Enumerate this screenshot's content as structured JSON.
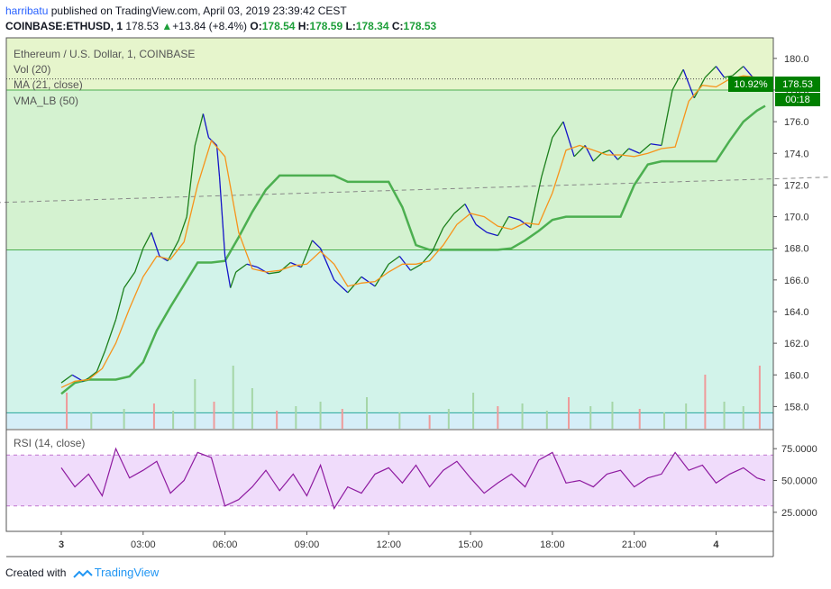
{
  "header": {
    "author": "harribatu",
    "published_text": "published on TradingView.com, April 03, 2019 23:39:42 CEST",
    "symbol": "COINBASE:ETHUSD, 1",
    "last": "178.53",
    "change": "+13.84 (+8.4%)",
    "o_label": "O:",
    "o": "178.54",
    "h_label": "H:",
    "h": "178.59",
    "l_label": "L:",
    "l": "178.34",
    "c_label": "C:",
    "c": "178.53"
  },
  "legend": {
    "title": "Ethereum / U.S. Dollar, 1, COINBASE",
    "vol": "Vol (20)",
    "ma": "MA (21, close)",
    "vma": "VMA_LB (50)",
    "rsi": "RSI (14, close)"
  },
  "price_badge": {
    "percent": "10.92%",
    "price": "178.53",
    "countdown": "00:18"
  },
  "footer": {
    "created_with": "Created with",
    "brand": "TradingView"
  },
  "colors": {
    "up_text": "#1e9f3a",
    "zone_upper": "#e6f5cc",
    "zone_middle": "#d4f2d0",
    "zone_lower": "#d2f3ea",
    "volume_zone": "#d5eef8",
    "rsi_band": "#f0dcfb",
    "rsi_line": "#8e1aa0",
    "ma_line": "#f7931a",
    "vma_line": "#4caf50",
    "price_up": "#1b7f1b",
    "price_down": "#1515c8",
    "price_red": "#e01010",
    "trend_line": "#888888",
    "badge_green": "#008000"
  },
  "chart_data": [
    {
      "type": "line",
      "title": "Ethereum / U.S. Dollar, 1, COINBASE",
      "x_ticks": [
        "3",
        "03:00",
        "06:00",
        "09:00",
        "12:00",
        "15:00",
        "18:00",
        "21:00",
        "4"
      ],
      "y_ticks": [
        158,
        160,
        162,
        164,
        166,
        168,
        170,
        172,
        174,
        176,
        178,
        180
      ],
      "ylim": [
        156.6,
        181.3
      ],
      "last_price": 178.53,
      "horizontal_levels": [
        178.0,
        167.9,
        157.6
      ],
      "trend_line": {
        "start": [
          0,
          170.7
        ],
        "end": [
          28.2,
          172.5
        ]
      },
      "series": [
        {
          "name": "price",
          "x": [
            0.0,
            0.4,
            0.8,
            1.0,
            1.3,
            1.6,
            2.0,
            2.3,
            2.7,
            3.0,
            3.3,
            3.6,
            3.9,
            4.3,
            4.6,
            4.9,
            5.2,
            5.4,
            5.7,
            5.8,
            6.0,
            6.2,
            6.4,
            6.8,
            7.2,
            7.6,
            8.0,
            8.4,
            8.8,
            9.2,
            9.5,
            10.0,
            10.5,
            11.0,
            11.5,
            12.0,
            12.4,
            12.8,
            13.2,
            13.6,
            14.0,
            14.4,
            14.8,
            15.2,
            15.6,
            16.0,
            16.4,
            16.8,
            17.2,
            17.6,
            18.0,
            18.4,
            18.8,
            19.2,
            19.5,
            19.8,
            20.1,
            20.4,
            20.8,
            21.2,
            21.6,
            22.0,
            22.4,
            22.8,
            23.2,
            23.6,
            24.0,
            24.3,
            24.6,
            25.0,
            25.4,
            25.8
          ],
          "values": [
            159.5,
            160.0,
            159.6,
            159.8,
            160.2,
            161.5,
            163.5,
            165.5,
            166.5,
            168.0,
            169.0,
            167.5,
            167.2,
            168.5,
            170.0,
            174.5,
            176.5,
            175.0,
            174.5,
            172.5,
            167.5,
            165.5,
            166.5,
            167.0,
            166.8,
            166.4,
            166.5,
            167.1,
            166.8,
            168.5,
            168.0,
            166.0,
            165.2,
            166.2,
            165.6,
            167.0,
            167.5,
            166.6,
            167.0,
            167.8,
            169.3,
            170.2,
            170.8,
            169.5,
            169.0,
            168.8,
            170.0,
            169.8,
            169.3,
            172.5,
            175.0,
            176.0,
            173.8,
            174.5,
            173.5,
            174.0,
            174.2,
            173.6,
            174.3,
            174.0,
            174.6,
            174.5,
            178.0,
            179.3,
            177.5,
            178.8,
            179.5,
            178.8,
            178.9,
            179.5,
            178.7,
            178.53
          ]
        },
        {
          "name": "MA (21, close)",
          "x": [
            0.0,
            0.5,
            1.0,
            1.5,
            2.0,
            2.5,
            3.0,
            3.5,
            4.0,
            4.5,
            5.0,
            5.5,
            6.0,
            6.5,
            7.0,
            7.5,
            8.0,
            8.5,
            9.0,
            9.5,
            10.0,
            10.5,
            11.0,
            11.5,
            12.0,
            12.5,
            13.0,
            13.5,
            14.0,
            14.5,
            15.0,
            15.5,
            16.0,
            16.5,
            17.0,
            17.5,
            18.0,
            18.5,
            19.0,
            19.5,
            20.0,
            20.5,
            21.0,
            21.5,
            22.0,
            22.5,
            23.0,
            23.5,
            24.0,
            24.5,
            25.0,
            25.5,
            25.8
          ],
          "values": [
            159.2,
            159.6,
            159.7,
            160.4,
            162.0,
            164.2,
            166.2,
            167.5,
            167.3,
            168.4,
            172.0,
            174.8,
            173.8,
            169.0,
            166.7,
            166.5,
            166.6,
            166.9,
            167.0,
            167.8,
            167.0,
            165.6,
            165.8,
            165.9,
            166.5,
            167.0,
            167.0,
            167.2,
            168.2,
            169.5,
            170.2,
            170.0,
            169.4,
            169.2,
            169.6,
            169.5,
            171.5,
            174.2,
            174.5,
            174.2,
            173.9,
            173.9,
            173.8,
            174.0,
            174.3,
            174.4,
            177.3,
            178.3,
            178.2,
            178.7,
            178.9,
            178.8,
            178.7
          ]
        },
        {
          "name": "VMA_LB (50)",
          "x": [
            0.0,
            0.5,
            1.0,
            1.5,
            2.0,
            2.5,
            3.0,
            3.5,
            4.0,
            4.5,
            5.0,
            5.5,
            6.0,
            6.5,
            7.0,
            7.5,
            8.0,
            8.5,
            9.0,
            9.5,
            10.0,
            10.5,
            11.0,
            11.5,
            12.0,
            12.5,
            13.0,
            13.5,
            14.0,
            14.5,
            15.0,
            15.5,
            16.0,
            16.5,
            17.0,
            17.5,
            18.0,
            18.5,
            19.0,
            19.5,
            20.0,
            20.5,
            21.0,
            21.5,
            22.0,
            22.5,
            23.0,
            23.5,
            24.0,
            24.5,
            25.0,
            25.5,
            25.8
          ],
          "values": [
            158.8,
            159.5,
            159.7,
            159.7,
            159.7,
            159.9,
            160.8,
            162.8,
            164.3,
            165.7,
            167.1,
            167.1,
            167.2,
            168.7,
            170.3,
            171.7,
            172.6,
            172.6,
            172.6,
            172.6,
            172.6,
            172.2,
            172.2,
            172.2,
            172.2,
            170.6,
            168.2,
            167.9,
            167.9,
            167.9,
            167.9,
            167.9,
            167.9,
            168.0,
            168.5,
            169.1,
            169.8,
            170.0,
            170.0,
            170.0,
            170.0,
            170.0,
            172.0,
            173.3,
            173.5,
            173.5,
            173.5,
            173.5,
            173.5,
            174.8,
            176.0,
            176.7,
            177.0
          ]
        }
      ]
    },
    {
      "type": "bar",
      "title": "Vol (20)",
      "x": [
        0.2,
        1.1,
        2.3,
        3.4,
        4.1,
        4.9,
        5.6,
        6.3,
        7.0,
        7.9,
        8.6,
        9.5,
        10.3,
        11.2,
        12.4,
        13.5,
        14.2,
        15.1,
        16.0,
        16.9,
        17.8,
        18.6,
        19.4,
        20.2,
        21.2,
        22.1,
        22.9,
        23.6,
        24.3,
        25.0,
        25.6
      ],
      "values": [
        40,
        18,
        22,
        28,
        20,
        55,
        30,
        70,
        45,
        20,
        25,
        30,
        22,
        35,
        18,
        15,
        22,
        40,
        25,
        28,
        20,
        35,
        25,
        30,
        22,
        18,
        28,
        60,
        30,
        25,
        70
      ]
    },
    {
      "type": "line",
      "title": "RSI (14, close)",
      "y_ticks": [
        "25.0000",
        "50.0000",
        "75.0000"
      ],
      "ylim": [
        10,
        90
      ],
      "levels": [
        30,
        70
      ],
      "series": [
        {
          "name": "RSI",
          "x": [
            0.0,
            0.5,
            1.0,
            1.5,
            2.0,
            2.5,
            3.0,
            3.5,
            4.0,
            4.5,
            5.0,
            5.5,
            6.0,
            6.5,
            7.0,
            7.5,
            8.0,
            8.5,
            9.0,
            9.5,
            10.0,
            10.5,
            11.0,
            11.5,
            12.0,
            12.5,
            13.0,
            13.5,
            14.0,
            14.5,
            15.0,
            15.5,
            16.0,
            16.5,
            17.0,
            17.5,
            18.0,
            18.5,
            19.0,
            19.5,
            20.0,
            20.5,
            21.0,
            21.5,
            22.0,
            22.5,
            23.0,
            23.5,
            24.0,
            24.5,
            25.0,
            25.5,
            25.8
          ],
          "values": [
            60,
            45,
            55,
            38,
            75,
            52,
            58,
            65,
            40,
            50,
            72,
            68,
            30,
            35,
            45,
            58,
            42,
            55,
            38,
            62,
            28,
            45,
            40,
            55,
            60,
            48,
            62,
            45,
            58,
            65,
            52,
            40,
            48,
            55,
            45,
            66,
            72,
            48,
            50,
            45,
            55,
            58,
            45,
            52,
            55,
            72,
            58,
            62,
            48,
            55,
            60,
            52,
            50
          ]
        }
      ]
    }
  ]
}
